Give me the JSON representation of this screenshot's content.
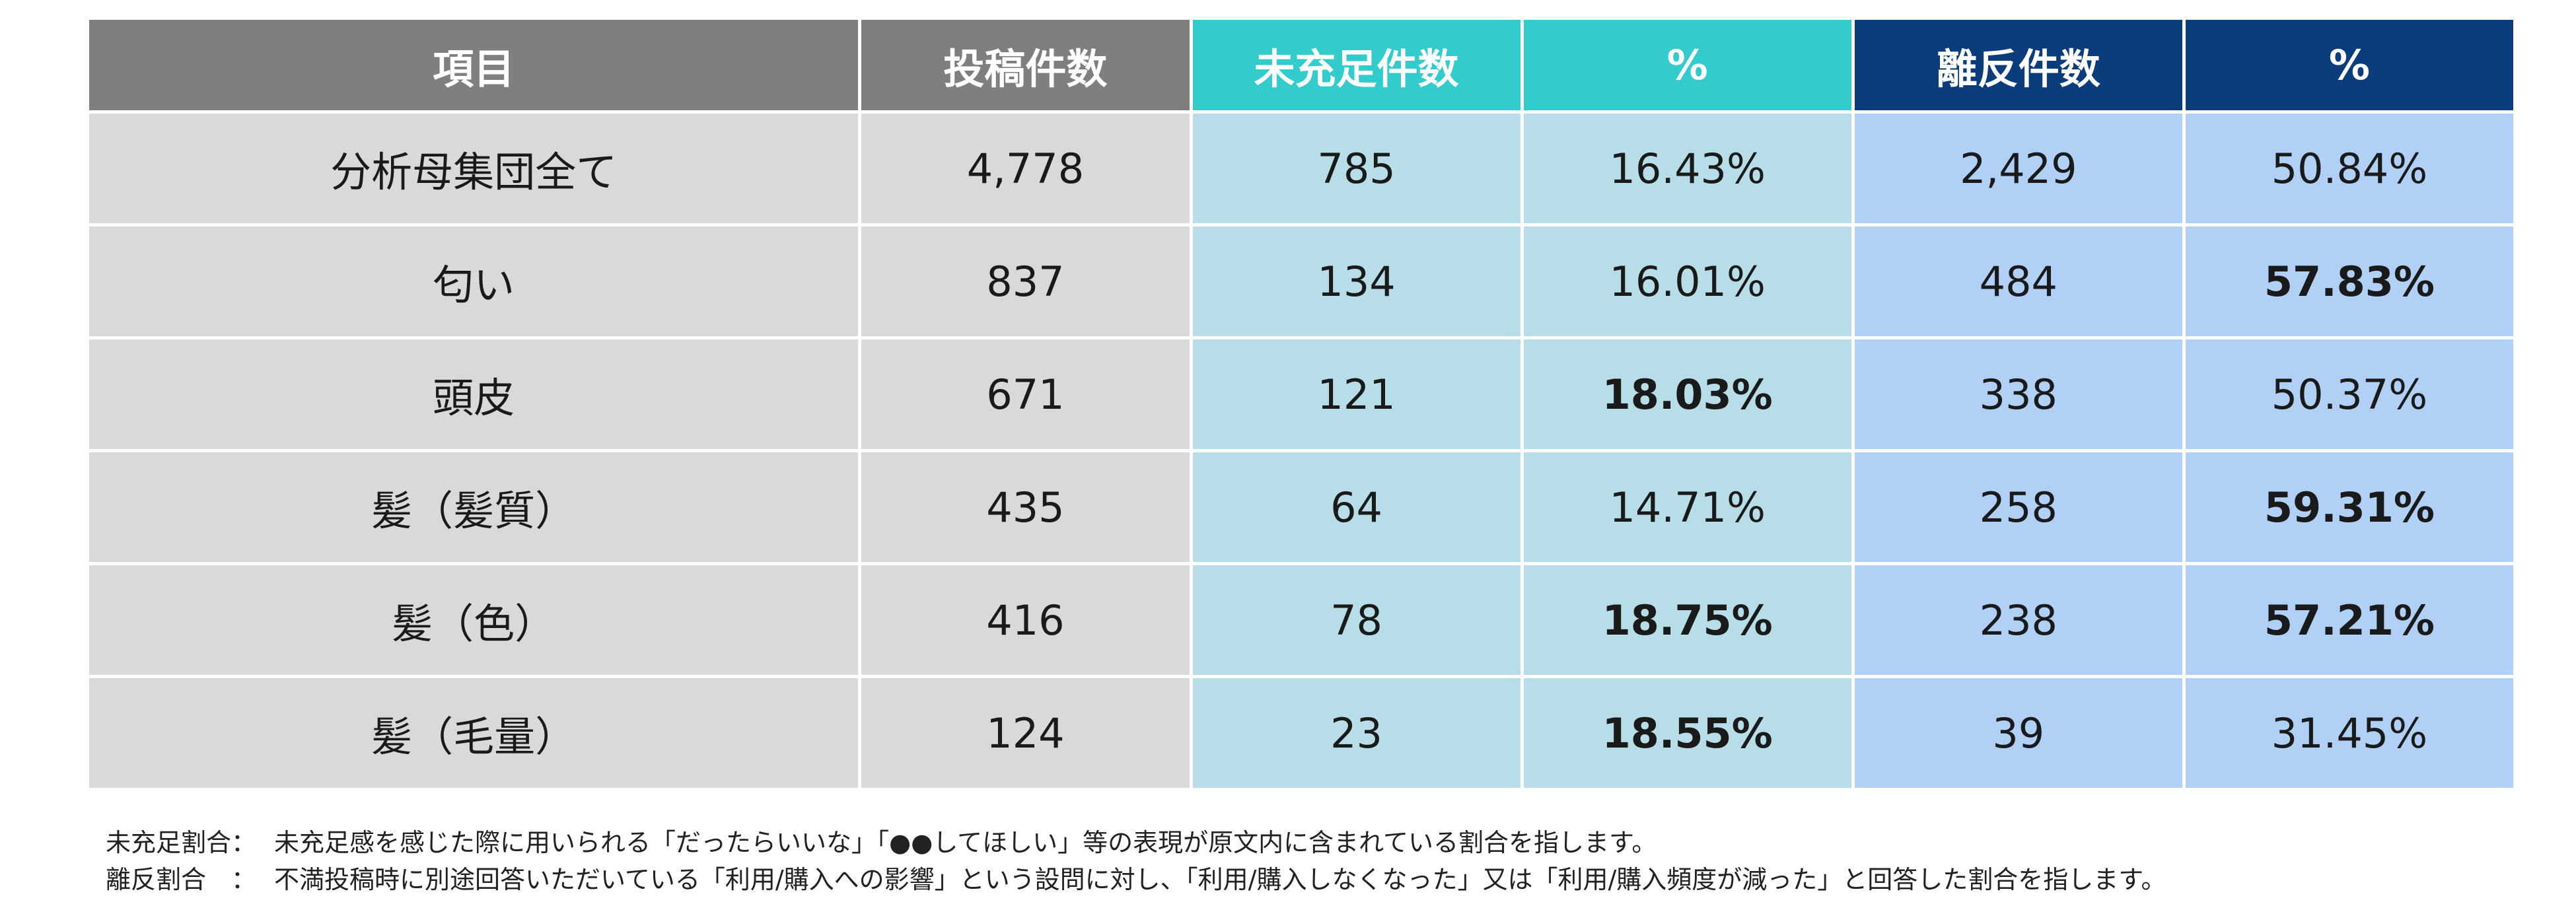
{
  "table": {
    "headers": [
      "項目",
      "投稿件数",
      "未充足件数",
      "%",
      "離反件数",
      "%"
    ],
    "rows": [
      {
        "item": "分析母集団全て",
        "posts": "4,778",
        "unmet": "785",
        "unmet_pct": "16.43%",
        "churn": "2,429",
        "churn_pct": "50.84%"
      },
      {
        "item": "匂い",
        "posts": "837",
        "unmet": "134",
        "unmet_pct": "16.01%",
        "churn": "484",
        "churn_pct": "57.83%"
      },
      {
        "item": "頭皮",
        "posts": "671",
        "unmet": "121",
        "unmet_pct": "18.03%",
        "churn": "338",
        "churn_pct": "50.37%"
      },
      {
        "item": "髪（髪質）",
        "posts": "435",
        "unmet": "64",
        "unmet_pct": "14.71%",
        "churn": "258",
        "churn_pct": "59.31%"
      },
      {
        "item": "髪（色）",
        "posts": "416",
        "unmet": "78",
        "unmet_pct": "18.75%",
        "churn": "238",
        "churn_pct": "57.21%"
      },
      {
        "item": "髪（毛量）",
        "posts": "124",
        "unmet": "23",
        "unmet_pct": "18.55%",
        "churn": "39",
        "churn_pct": "31.45%"
      }
    ]
  },
  "notes": {
    "unmet_label": "未充足割合：",
    "unmet_text": "未充足感を感じた際に用いられる「だったらいいな」「●●してほしい」等の表現が原文内に含まれている割合を指します。",
    "churn_label": "離反割合　：",
    "churn_text": "不満投稿時に別途回答いただいている「利用/購入への影響」という設問に対し、「利用/購入しなくなった」又は「利用/購入頻度が減った」と回答した割合を指します。"
  },
  "colors": {
    "header_gray": "#7f7f7f",
    "header_teal": "#33cccc",
    "header_navy": "#0b3c7b",
    "cell_gray": "#d9d9d9",
    "cell_teal": "#b7dee8",
    "cell_blue": "#b0d0f5"
  }
}
